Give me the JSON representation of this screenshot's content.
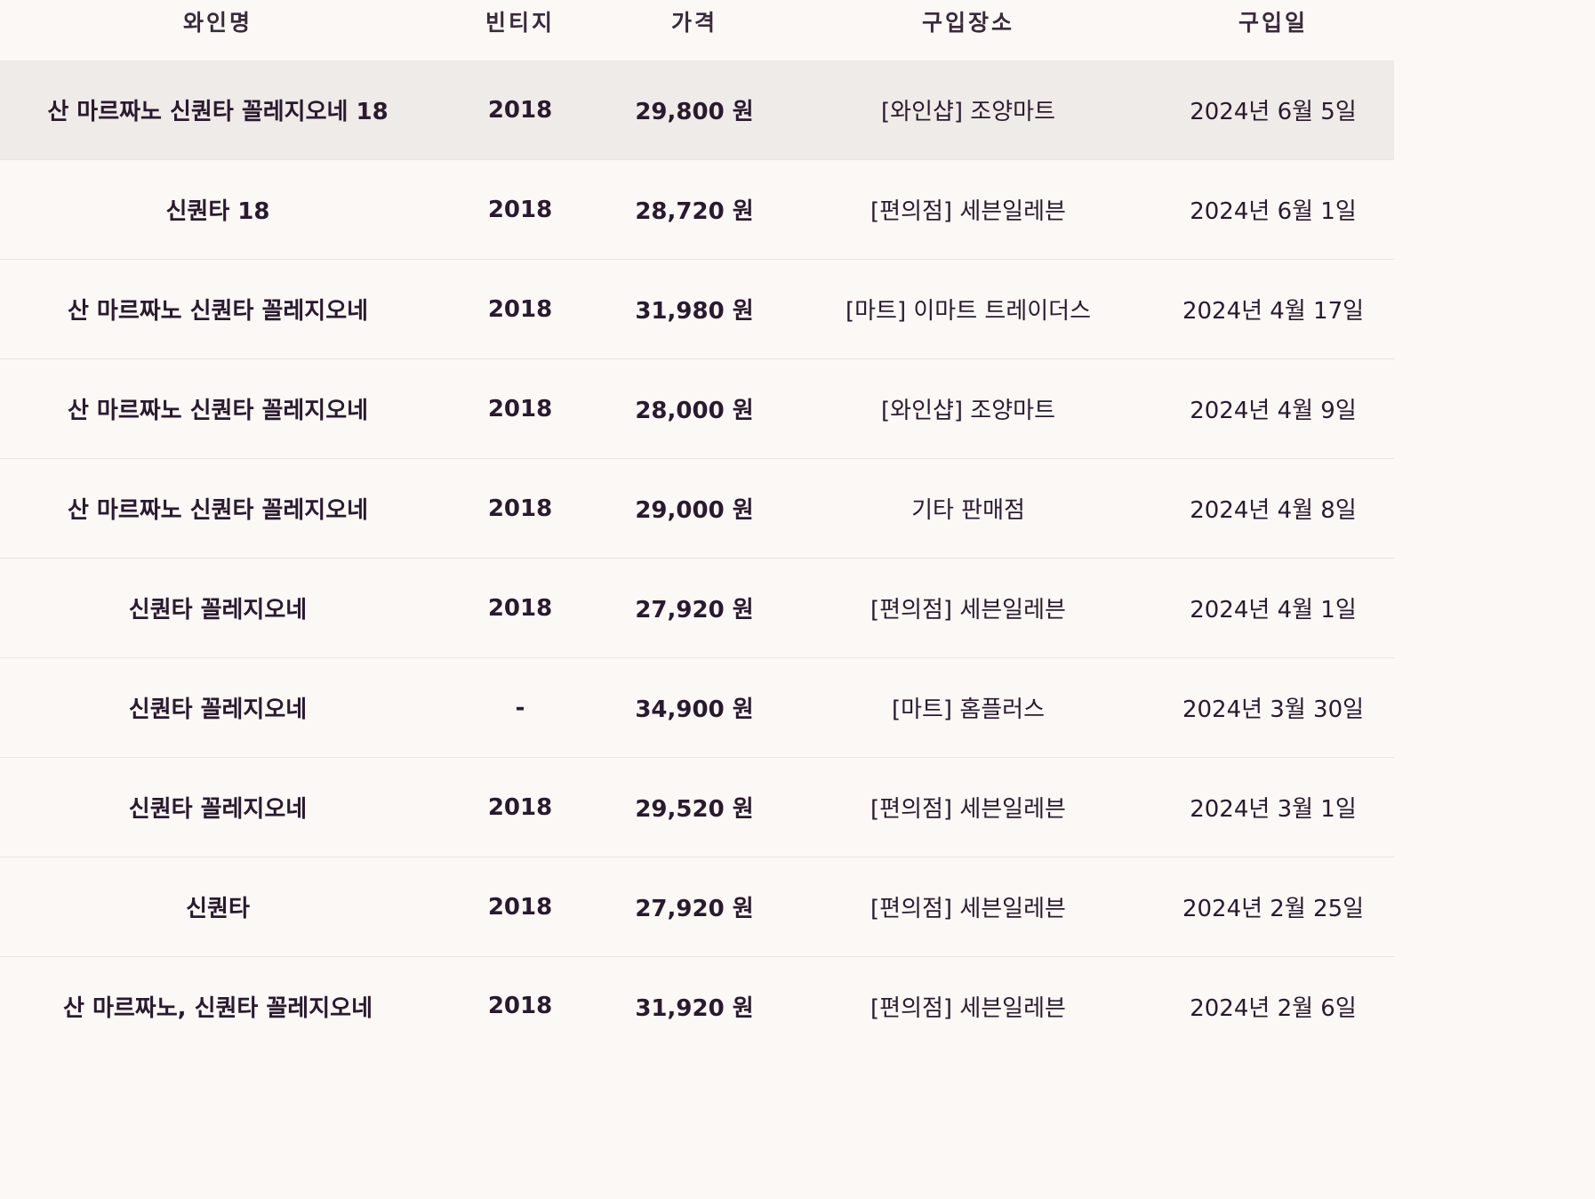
{
  "header": {
    "name": "와인명",
    "vintage": "빈티지",
    "price": "가격",
    "place": "구입장소",
    "date": "구입일"
  },
  "rows": [
    {
      "name": "산 마르짜노 신퀀타 꼴레지오네 18",
      "vintage": "2018",
      "price": "29,800 원",
      "place": "[와인샵] 조양마트",
      "date": "2024년 6월 5일"
    },
    {
      "name": "신퀀타 18",
      "vintage": "2018",
      "price": "28,720 원",
      "place": "[편의점] 세븐일레븐",
      "date": "2024년 6월 1일"
    },
    {
      "name": "산 마르짜노 신퀀타 꼴레지오네",
      "vintage": "2018",
      "price": "31,980 원",
      "place": "[마트] 이마트 트레이더스",
      "date": "2024년 4월 17일"
    },
    {
      "name": "산 마르짜노 신퀀타 꼴레지오네",
      "vintage": "2018",
      "price": "28,000 원",
      "place": "[와인샵] 조양마트",
      "date": "2024년 4월 9일"
    },
    {
      "name": "산 마르짜노 신퀀타 꼴레지오네",
      "vintage": "2018",
      "price": "29,000 원",
      "place": "기타 판매점",
      "date": "2024년 4월 8일"
    },
    {
      "name": "신퀀타 꼴레지오네",
      "vintage": "2018",
      "price": "27,920 원",
      "place": "[편의점] 세븐일레븐",
      "date": "2024년 4월 1일"
    },
    {
      "name": "신퀀타 꼴레지오네",
      "vintage": "-",
      "price": "34,900 원",
      "place": "[마트] 홈플러스",
      "date": "2024년 3월 30일"
    },
    {
      "name": "신퀀타 꼴레지오네",
      "vintage": "2018",
      "price": "29,520 원",
      "place": "[편의점] 세븐일레븐",
      "date": "2024년 3월 1일"
    },
    {
      "name": "신퀀타",
      "vintage": "2018",
      "price": "27,920 원",
      "place": "[편의점] 세븐일레븐",
      "date": "2024년 2월 25일"
    },
    {
      "name": "산 마르짜노, 신퀀타 꼴레지오네",
      "vintage": "2018",
      "price": "31,920 원",
      "place": "[편의점] 세븐일레븐",
      "date": "2024년 2월 6일"
    }
  ],
  "colors": {
    "background": "#fbf8f6",
    "highlight_row": "#efebe8",
    "text": "#2a1a2e",
    "divider": "#ece4e1"
  }
}
